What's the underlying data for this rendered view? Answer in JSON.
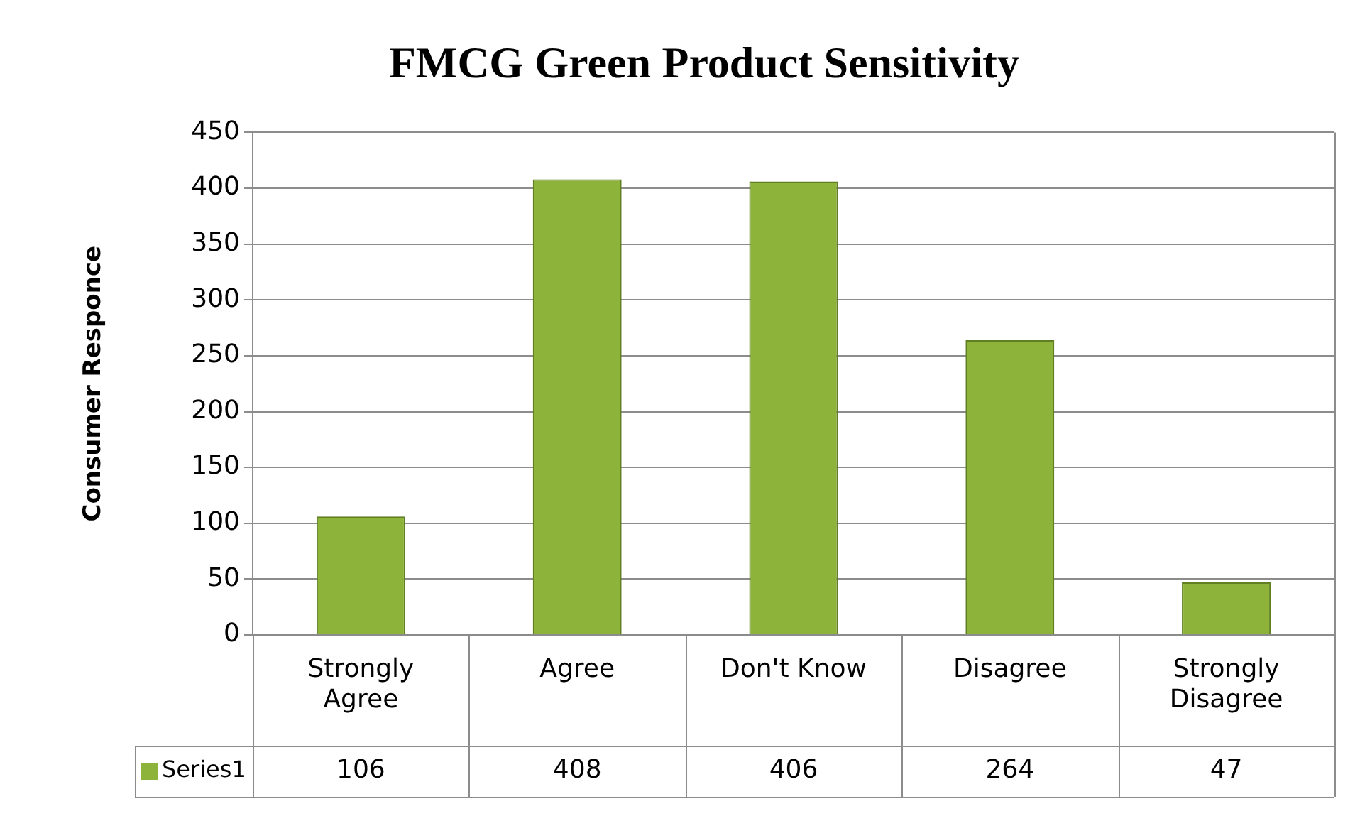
{
  "chart_data": {
    "type": "bar",
    "title": "FMCG Green Product Sensitivity",
    "ylabel": "Consumer Responce",
    "categories": [
      "Strongly Agree",
      "Agree",
      "Don't Know",
      "Disagree",
      "Strongly Disagree"
    ],
    "series": [
      {
        "name": "Series1",
        "color": "#8db33a",
        "values": [
          106,
          408,
          406,
          264,
          47
        ]
      }
    ],
    "ylim": [
      0,
      450
    ],
    "yticks": [
      0,
      50,
      100,
      150,
      200,
      250,
      300,
      350,
      400,
      450
    ],
    "grid": "y",
    "data_labels": true
  }
}
